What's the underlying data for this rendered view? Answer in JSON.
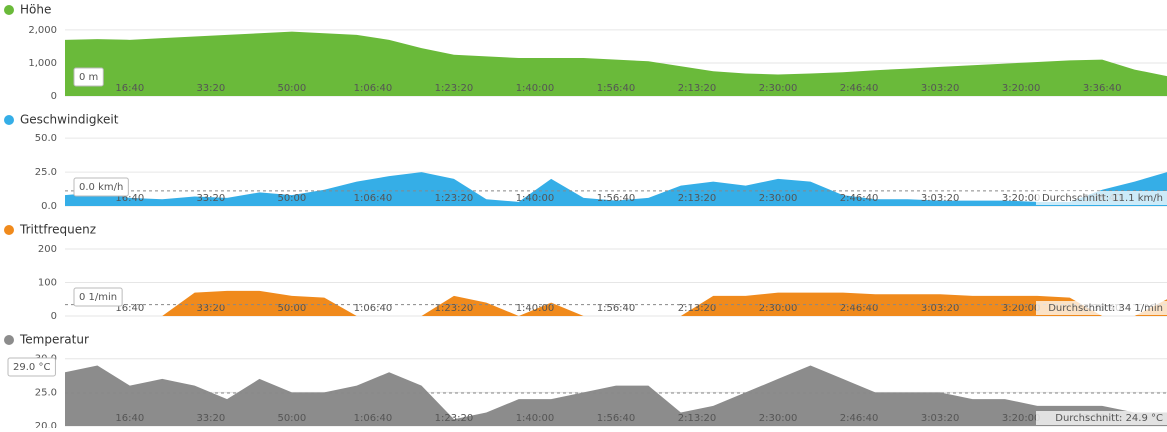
{
  "chart_data": [
    {
      "type": "area",
      "xlim": [
        200,
        13800
      ],
      "ylim": [
        0,
        2300
      ],
      "xticks": [
        {
          "value": 1000,
          "label": "16:40"
        },
        {
          "value": 2000,
          "label": "33:20"
        },
        {
          "value": 3000,
          "label": "50:00"
        },
        {
          "value": 4000,
          "label": "1:06:40"
        },
        {
          "value": 5000,
          "label": "1:23:20"
        },
        {
          "value": 6000,
          "label": "1:40:00"
        },
        {
          "value": 7000,
          "label": "1:56:40"
        },
        {
          "value": 8000,
          "label": "2:13:20"
        },
        {
          "value": 9000,
          "label": "2:30:00"
        },
        {
          "value": 10000,
          "label": "2:46:40"
        },
        {
          "value": 11000,
          "label": "3:03:20"
        },
        {
          "value": 12000,
          "label": "3:20:00"
        },
        {
          "value": 13000,
          "label": "3:36:40"
        }
      ],
      "yticks": [
        0,
        {
          "value": 1000,
          "label": "1,000"
        },
        {
          "value": 2000,
          "label": "2,000"
        }
      ],
      "cursor_label": "0 m",
      "x": [
        200,
        600,
        1000,
        1400,
        1800,
        2200,
        2600,
        3000,
        3400,
        3800,
        4200,
        4600,
        5000,
        5400,
        5800,
        6200,
        6600,
        7000,
        7400,
        7800,
        8200,
        8600,
        9000,
        9400,
        9800,
        10200,
        10600,
        11000,
        11400,
        11800,
        12200,
        12600,
        13000,
        13400,
        13800
      ],
      "series": [
        {
          "name": "Höhe",
          "color": "#6aba3a",
          "values": [
            1700,
            1720,
            1700,
            1750,
            1800,
            1850,
            1900,
            1950,
            1900,
            1850,
            1700,
            1450,
            1250,
            1200,
            1150,
            1150,
            1150,
            1100,
            1050,
            900,
            750,
            680,
            650,
            680,
            720,
            780,
            830,
            880,
            930,
            980,
            1030,
            1080,
            1100,
            800,
            600
          ]
        }
      ]
    },
    {
      "type": "area",
      "xlim": [
        200,
        13800
      ],
      "ylim": [
        0,
        56
      ],
      "xticks": [
        {
          "value": 1000,
          "label": "16:40"
        },
        {
          "value": 2000,
          "label": "33:20"
        },
        {
          "value": 3000,
          "label": "50:00"
        },
        {
          "value": 4000,
          "label": "1:06:40"
        },
        {
          "value": 5000,
          "label": "1:23:20"
        },
        {
          "value": 6000,
          "label": "1:40:00"
        },
        {
          "value": 7000,
          "label": "1:56:40"
        },
        {
          "value": 8000,
          "label": "2:13:20"
        },
        {
          "value": 9000,
          "label": "2:30:00"
        },
        {
          "value": 10000,
          "label": "2:46:40"
        },
        {
          "value": 11000,
          "label": "3:03:20"
        },
        {
          "value": 12000,
          "label": "3:20:00"
        },
        {
          "value": 13000,
          "label": "3:36:40"
        }
      ],
      "yticks": [
        {
          "value": 0,
          "label": "0.0"
        },
        {
          "value": 25,
          "label": "25.0"
        },
        {
          "value": 50,
          "label": "50.0"
        }
      ],
      "cursor_label": "0.0 km/h",
      "average": 11.1,
      "average_label": "Durchschnitt: 11.1 km/h",
      "x": [
        200,
        600,
        1000,
        1400,
        1800,
        2200,
        2600,
        3000,
        3400,
        3800,
        4200,
        4600,
        5000,
        5400,
        5800,
        6200,
        6600,
        7000,
        7400,
        7800,
        8200,
        8600,
        9000,
        9400,
        9800,
        10200,
        10600,
        11000,
        11400,
        11800,
        12200,
        12600,
        13000,
        13400,
        13800
      ],
      "series": [
        {
          "name": "Geschwindigkeit",
          "color": "#35aee7",
          "values": [
            8,
            10,
            6,
            5,
            7,
            6,
            10,
            8,
            12,
            18,
            22,
            25,
            20,
            5,
            3,
            20,
            6,
            4,
            6,
            15,
            18,
            15,
            20,
            18,
            8,
            5,
            5,
            4,
            4,
            4,
            3,
            3,
            12,
            18,
            25
          ]
        }
      ]
    },
    {
      "type": "area",
      "xlim": [
        200,
        13800
      ],
      "ylim": [
        0,
        227
      ],
      "xticks": [
        {
          "value": 1000,
          "label": "16:40"
        },
        {
          "value": 2000,
          "label": "33:20"
        },
        {
          "value": 3000,
          "label": "50:00"
        },
        {
          "value": 4000,
          "label": "1:06:40"
        },
        {
          "value": 5000,
          "label": "1:23:20"
        },
        {
          "value": 6000,
          "label": "1:40:00"
        },
        {
          "value": 7000,
          "label": "1:56:40"
        },
        {
          "value": 8000,
          "label": "2:13:20"
        },
        {
          "value": 9000,
          "label": "2:30:00"
        },
        {
          "value": 10000,
          "label": "2:46:40"
        },
        {
          "value": 11000,
          "label": "3:03:20"
        },
        {
          "value": 12000,
          "label": "3:20:00"
        },
        {
          "value": 13000,
          "label": "3:36:40"
        }
      ],
      "yticks": [
        0,
        100,
        200
      ],
      "cursor_label": "0 1/min",
      "average": 34,
      "average_label": "Durchschnitt: 34 1/min",
      "x": [
        200,
        600,
        1000,
        1400,
        1800,
        2200,
        2600,
        3000,
        3400,
        3800,
        4200,
        4600,
        5000,
        5400,
        5800,
        6200,
        6600,
        7000,
        7400,
        7800,
        8200,
        8600,
        9000,
        9400,
        9800,
        10200,
        10600,
        11000,
        11400,
        11800,
        12200,
        12600,
        13000,
        13400,
        13800
      ],
      "series": [
        {
          "name": "Trittfrequenz",
          "color": "#f08a1c",
          "values": [
            0,
            0,
            0,
            0,
            70,
            75,
            75,
            60,
            55,
            0,
            0,
            0,
            60,
            40,
            0,
            40,
            0,
            0,
            0,
            0,
            60,
            60,
            70,
            70,
            70,
            65,
            65,
            65,
            60,
            60,
            60,
            55,
            0,
            0,
            50
          ]
        }
      ]
    },
    {
      "type": "area",
      "xlim": [
        200,
        13800
      ],
      "ylim": [
        20,
        31.3
      ],
      "xticks": [
        {
          "value": 1000,
          "label": "16:40"
        },
        {
          "value": 2000,
          "label": "33:20"
        },
        {
          "value": 3000,
          "label": "50:00"
        },
        {
          "value": 4000,
          "label": "1:06:40"
        },
        {
          "value": 5000,
          "label": "1:23:20"
        },
        {
          "value": 6000,
          "label": "1:40:00"
        },
        {
          "value": 7000,
          "label": "1:56:40"
        },
        {
          "value": 8000,
          "label": "2:13:20"
        },
        {
          "value": 9000,
          "label": "2:30:00"
        },
        {
          "value": 10000,
          "label": "2:46:40"
        },
        {
          "value": 11000,
          "label": "3:03:20"
        },
        {
          "value": 12000,
          "label": "3:20:00"
        },
        {
          "value": 13000,
          "label": "3:36:40"
        }
      ],
      "yticks": [
        {
          "value": 20,
          "label": "20.0"
        },
        {
          "value": 25,
          "label": "25.0"
        },
        {
          "value": 30,
          "label": "30.0"
        }
      ],
      "cursor_label": "29.0 °C",
      "average": 24.9,
      "average_label": "Durchschnitt: 24.9 °C",
      "x": [
        200,
        600,
        1000,
        1400,
        1800,
        2200,
        2600,
        3000,
        3400,
        3800,
        4200,
        4600,
        5000,
        5400,
        5800,
        6200,
        6600,
        7000,
        7400,
        7800,
        8200,
        8600,
        9000,
        9400,
        9800,
        10200,
        10600,
        11000,
        11400,
        11800,
        12200,
        12600,
        13000,
        13400,
        13800
      ],
      "series": [
        {
          "name": "Temperatur",
          "color": "#8c8c8c",
          "values": [
            28,
            29,
            26,
            27,
            26,
            24,
            27,
            25,
            25,
            26,
            28,
            26,
            21,
            22,
            24,
            24,
            25,
            26,
            26,
            22,
            23,
            25,
            27,
            29,
            27,
            25,
            25,
            25,
            24,
            24,
            23,
            23,
            23,
            22,
            22
          ]
        }
      ]
    }
  ]
}
